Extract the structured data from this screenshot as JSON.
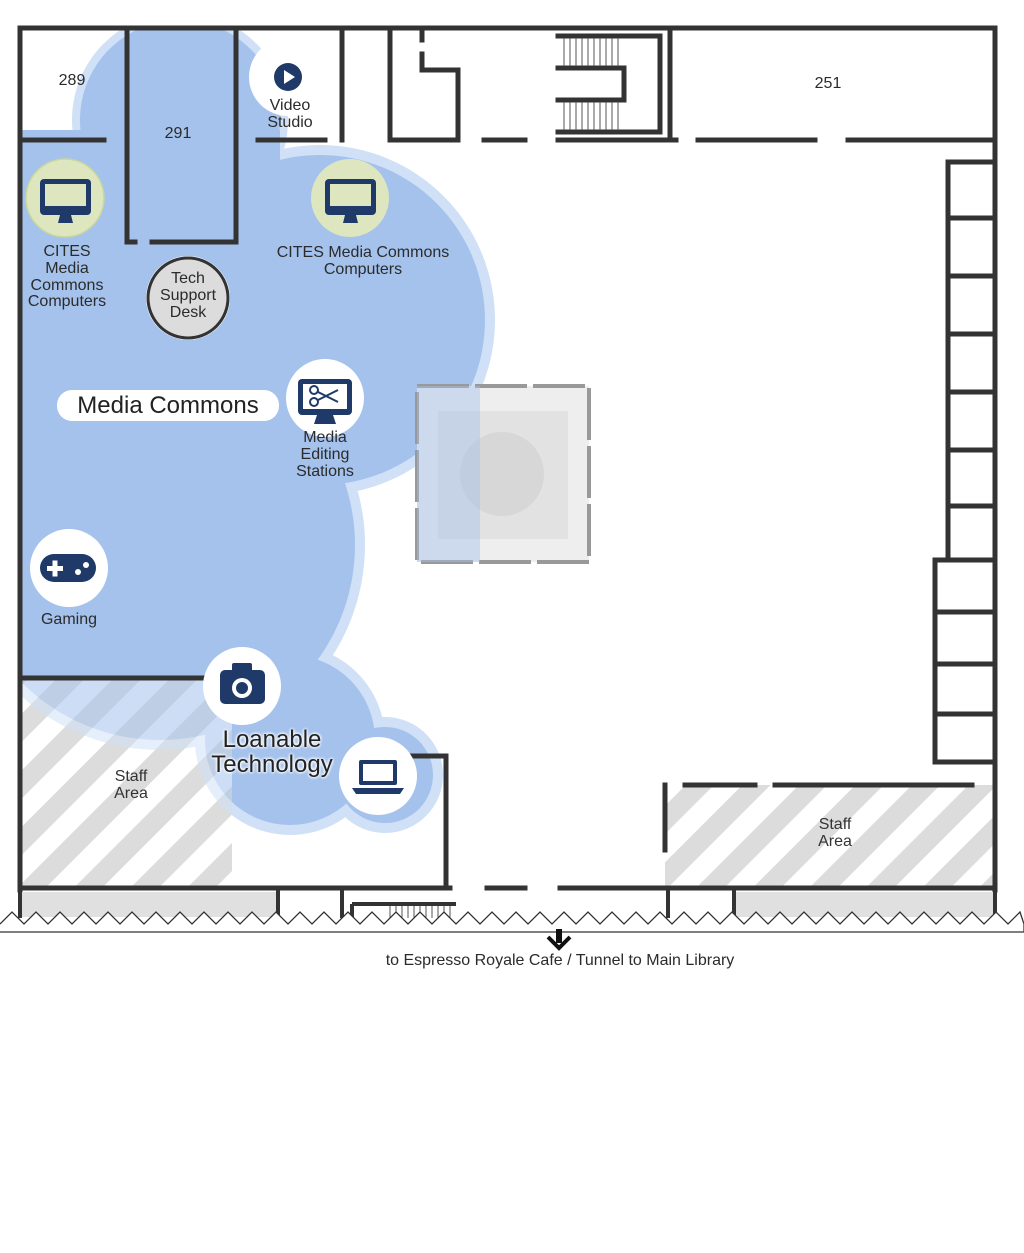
{
  "colors": {
    "zone_fill": "#a4c2ec",
    "zone_halo": "#cfe0f7",
    "wall": "#333333",
    "icon_dark": "#1f3a68",
    "computer_circle": "#dde6bf",
    "tech_desk": "#dcdcdc",
    "hatch": "#dcdcdc"
  },
  "rooms": {
    "r289": "289",
    "r291": "291",
    "r251": "251"
  },
  "pois": {
    "video_studio": "Video\nStudio",
    "cites_left": "CITES\nMedia\nCommons\nComputers",
    "cites_right": "CITES Media Commons\nComputers",
    "tech_support": "Tech\nSupport\nDesk",
    "media_editing": "Media\nEditing\nStations",
    "gaming": "Gaming"
  },
  "zones": {
    "media_commons": "Media Commons",
    "loanable_technology": "Loanable\nTechnology"
  },
  "staff_areas": {
    "left": "Staff\nArea",
    "right": "Staff\nArea"
  },
  "directions": {
    "text": "to Espresso Royale Cafe / Tunnel to Main Library"
  },
  "icons": [
    "play-icon",
    "monitor-icon",
    "scissors-monitor-icon",
    "gamepad-icon",
    "camera-icon",
    "laptop-icon",
    "down-arrow-icon"
  ]
}
